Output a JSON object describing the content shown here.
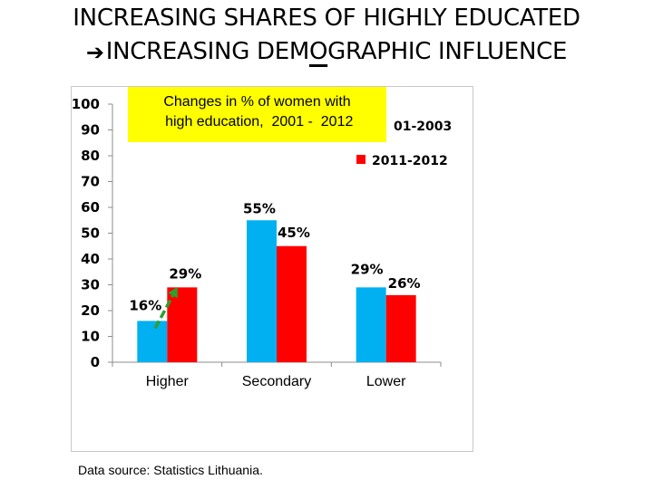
{
  "slide": {
    "title_line1": "INCREASING SHARES OF HIGHLY EDUCATED",
    "title_line2_prefix": "INCREASING DEM",
    "title_line2_underlined": "O",
    "title_line2_suffix": "GRAPHIC INFLUENCE",
    "arrow_icon": "right-arrow-icon",
    "note_line1": "Changes in % of women with",
    "note_line2": " high education,  2001 -  2012",
    "source": "Data source: Statistics Lithuania."
  },
  "colors": {
    "series_2001": "#00b0f0",
    "series_2011": "#ff0000",
    "note_background": "#ffff00",
    "trend_arrow": "#2e9e2e"
  },
  "chart_data": {
    "type": "bar",
    "categories": [
      "Higher",
      "Secondary",
      "Lower"
    ],
    "series": [
      {
        "name": "2001-2003",
        "values": [
          16,
          55,
          29
        ],
        "labels": [
          "16%",
          "55%",
          "29%"
        ],
        "color": "#00b0f0"
      },
      {
        "name": "2011-2012",
        "values": [
          29,
          45,
          26
        ],
        "labels": [
          "29%",
          "45%",
          "26%"
        ],
        "color": "#ff0000"
      }
    ],
    "legend_visible_text": [
      "01-2003",
      "2011-2012"
    ],
    "ylim": [
      0,
      100
    ],
    "yticks": [
      0,
      10,
      20,
      30,
      40,
      50,
      60,
      70,
      80,
      90,
      100
    ],
    "grid": false,
    "legend_position": "top-right",
    "annotation": "green arrow from 16% to 29% on Higher"
  }
}
